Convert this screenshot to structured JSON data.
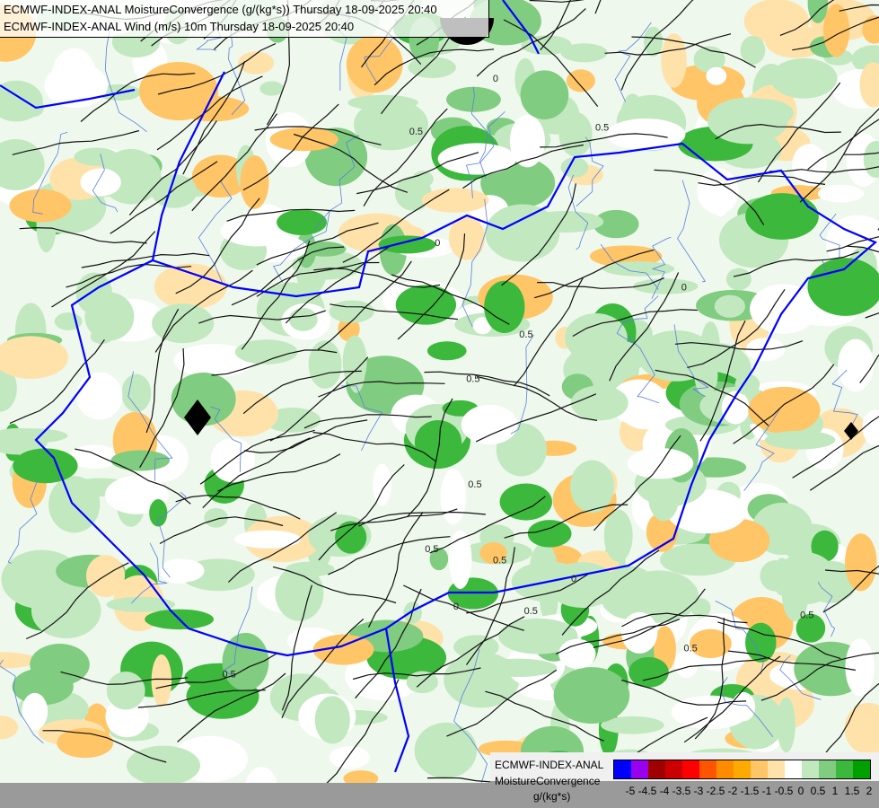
{
  "header": {
    "line1": "ECMWF-INDEX-ANAL MoistureConvergence (g/(kg*s)) Thursday 18-09-2025 20:40",
    "line2": "ECMWF-INDEX-ANAL Wind (m/s) 10m Thursday 18-09-2025 20:40"
  },
  "legend": {
    "title_line1": "ECMWF-INDEX-ANAL",
    "title_line2": "MoistureConvergence",
    "unit": "g/(kg*s)",
    "colors": [
      "#0000ff",
      "#9900ee",
      "#a00000",
      "#cc0000",
      "#ff0000",
      "#ff5500",
      "#ff8c00",
      "#ffaa00",
      "#ffc566",
      "#ffe2aa",
      "#ffffff",
      "#c2e8c0",
      "#80cc80",
      "#3cb83c",
      "#00a000"
    ],
    "tick_labels": [
      "-5",
      "-4.5",
      "-4",
      "-3.5",
      "-3",
      "-2.5",
      "-2",
      "-1.5",
      "-1",
      "-0.5",
      "0",
      "0.5",
      "1",
      "1.5",
      "2"
    ]
  },
  "map": {
    "contour_labels": [
      "0.5",
      "0",
      "0.5",
      "0",
      "0.5",
      "0.5",
      "0",
      "0.5",
      "0.5",
      "0",
      "0.5",
      "0.5",
      "0",
      "0.5",
      "0.5",
      "0.5"
    ],
    "border_color": "#0000ff"
  }
}
